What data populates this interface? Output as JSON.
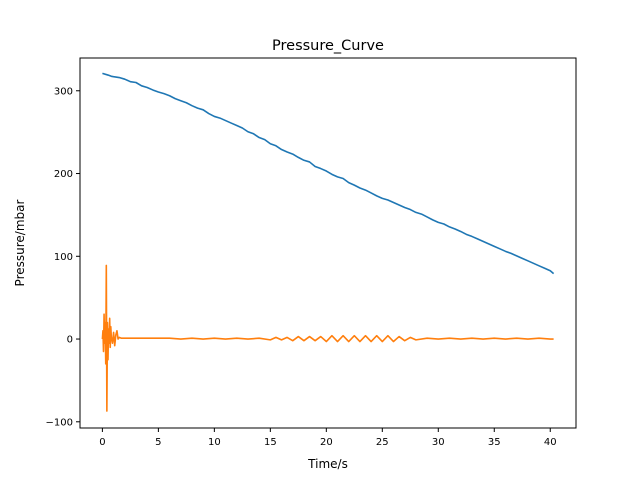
{
  "chart_data": {
    "type": "line",
    "title": "Pressure_Curve",
    "xlabel": "Time/s",
    "ylabel": "Pressure/mbar",
    "xlim": [
      -2.0,
      42.3
    ],
    "ylim": [
      -107.5,
      339.6
    ],
    "xticks": [
      0,
      5,
      10,
      15,
      20,
      25,
      30,
      35,
      40
    ],
    "yticks": [
      -100,
      0,
      100,
      200,
      300
    ],
    "grid": false,
    "legend": "none",
    "series": [
      {
        "color": "#1f77b4",
        "x": [
          0.0,
          0.5,
          0.8,
          1.0,
          1.5,
          2.0,
          2.5,
          3.0,
          3.5,
          4.0,
          4.5,
          5.0,
          5.5,
          6.0,
          6.5,
          7.0,
          7.5,
          8.0,
          8.5,
          9.0,
          9.5,
          10.0,
          10.5,
          11.0,
          11.5,
          12.0,
          12.5,
          13.0,
          13.5,
          14.0,
          14.5,
          15.0,
          15.5,
          16.0,
          16.5,
          17.0,
          17.5,
          18.0,
          18.5,
          19.0,
          19.5,
          20.0,
          20.5,
          21.0,
          21.5,
          22.0,
          22.5,
          23.0,
          23.5,
          24.0,
          24.5,
          25.0,
          25.5,
          26.0,
          26.5,
          27.0,
          27.5,
          28.0,
          28.5,
          29.0,
          29.5,
          30.0,
          30.5,
          31.0,
          31.5,
          32.0,
          32.5,
          33.0,
          33.5,
          34.0,
          34.5,
          35.0,
          35.5,
          36.0,
          36.5,
          37.0,
          37.5,
          38.0,
          38.5,
          39.0,
          39.5,
          40.0,
          40.3
        ],
        "values": [
          321.0,
          319.0,
          317.5,
          317.0,
          316.0,
          314.0,
          311.0,
          310.0,
          306.0,
          304.0,
          301.0,
          298.5,
          296.5,
          294.0,
          290.5,
          288.0,
          285.5,
          282.0,
          279.0,
          277.0,
          272.5,
          269.0,
          267.0,
          264.0,
          261.0,
          258.0,
          255.0,
          250.5,
          248.0,
          243.5,
          241.0,
          236.0,
          233.5,
          229.0,
          226.0,
          223.5,
          219.5,
          216.0,
          214.0,
          208.5,
          206.0,
          203.0,
          199.0,
          196.0,
          194.0,
          189.0,
          186.0,
          182.5,
          180.0,
          176.5,
          173.0,
          170.0,
          168.0,
          165.0,
          162.0,
          159.0,
          156.5,
          153.0,
          151.0,
          147.5,
          144.0,
          141.0,
          139.0,
          135.5,
          133.0,
          130.0,
          126.5,
          124.0,
          121.0,
          118.0,
          115.0,
          112.0,
          109.0,
          106.0,
          103.5,
          100.5,
          97.5,
          94.5,
          91.5,
          88.5,
          85.5,
          82.5,
          79.0
        ]
      },
      {
        "color": "#ff7f0e",
        "x": [
          0.0,
          0.05,
          0.1,
          0.15,
          0.2,
          0.25,
          0.3,
          0.35,
          0.4,
          0.45,
          0.5,
          0.55,
          0.6,
          0.65,
          0.7,
          0.75,
          0.8,
          0.9,
          1.0,
          1.1,
          1.2,
          1.3,
          1.4,
          1.5,
          1.7,
          2.0,
          2.5,
          3.0,
          4.0,
          5.0,
          6.0,
          7.0,
          8.0,
          9.0,
          10.0,
          11.0,
          12.0,
          13.0,
          14.0,
          15.0,
          15.5,
          16.0,
          16.5,
          17.0,
          17.5,
          18.0,
          18.5,
          19.0,
          19.5,
          20.0,
          20.5,
          21.0,
          21.5,
          22.0,
          22.5,
          23.0,
          23.5,
          24.0,
          24.5,
          25.0,
          25.5,
          26.0,
          26.5,
          27.0,
          27.5,
          28.0,
          29.0,
          30.0,
          31.0,
          32.0,
          33.0,
          34.0,
          35.0,
          36.0,
          37.0,
          38.0,
          39.0,
          40.0,
          40.3
        ],
        "values": [
          0,
          10,
          -15,
          30,
          -5,
          20,
          -30,
          89,
          -87,
          20,
          -25,
          12,
          -5,
          25,
          -10,
          15,
          2,
          -5,
          8,
          -8,
          5,
          10,
          0,
          2,
          1,
          1,
          1,
          1,
          1,
          1,
          1,
          0,
          1,
          0,
          1,
          0,
          1,
          0,
          1,
          -1,
          2,
          -1,
          2,
          -2,
          3,
          -2,
          3,
          -2,
          3,
          -3,
          4,
          -3,
          4,
          -3,
          4,
          -3,
          4,
          -3,
          4,
          -3,
          4,
          -3,
          3,
          -2,
          2,
          -1,
          1,
          0,
          1,
          0,
          1,
          0,
          1,
          0,
          1,
          0,
          1,
          0,
          0
        ]
      }
    ]
  }
}
